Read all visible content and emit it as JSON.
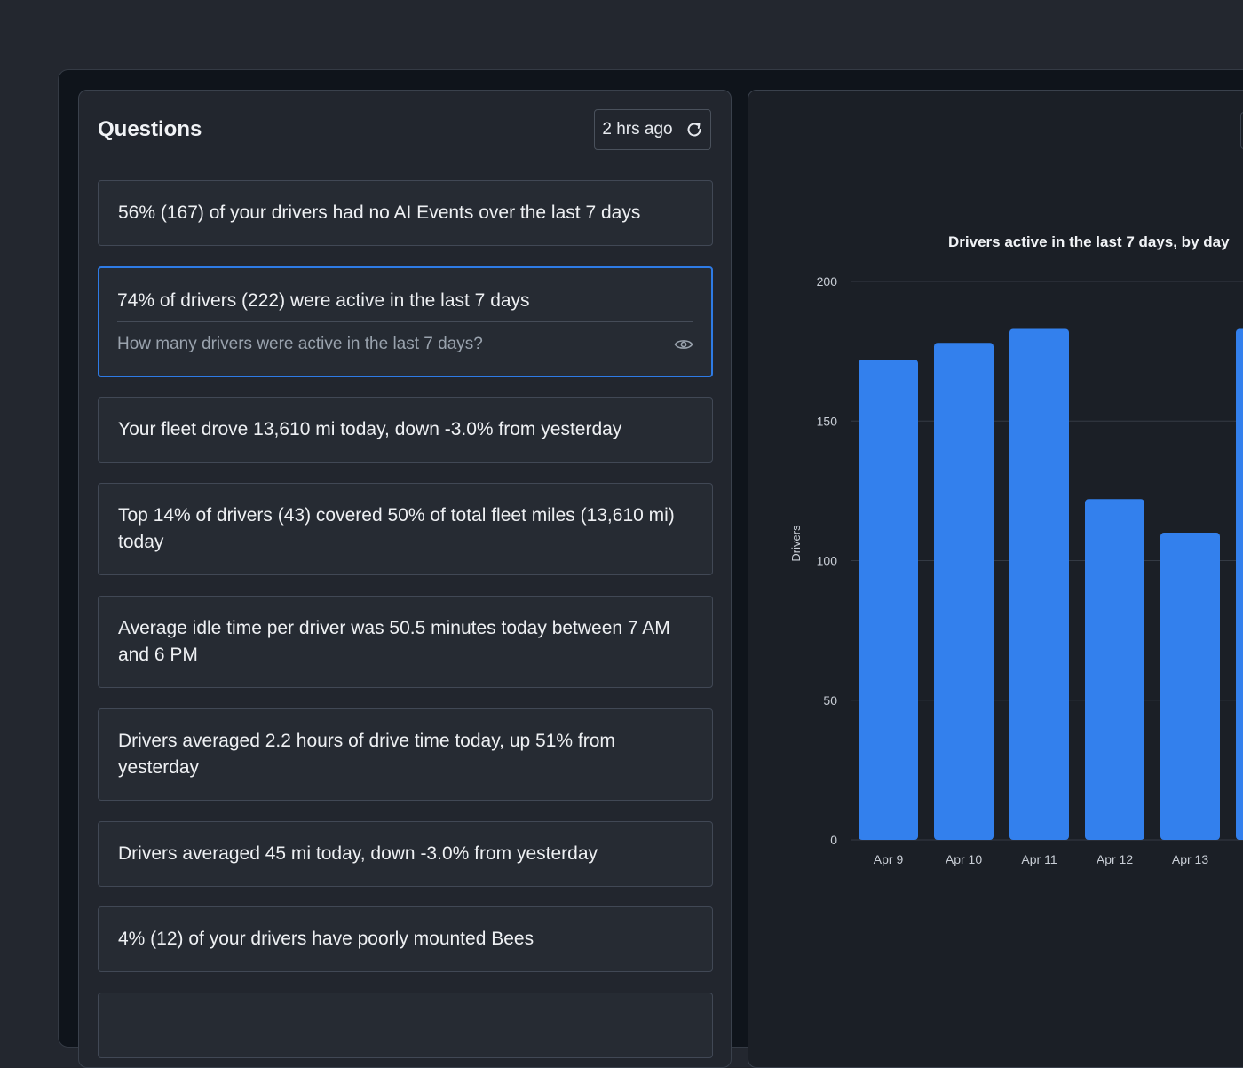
{
  "questions_panel": {
    "title": "Questions",
    "refresh_label": "2 hrs ago",
    "cards": [
      {
        "text": "56% (167) of your drivers had no AI Events over the last 7 days"
      },
      {
        "text": "74% of drivers (222) were active in the last 7 days",
        "question": "How many drivers were active in the last 7 days?"
      },
      {
        "text": "Your fleet drove 13,610 mi today, down -3.0% from yesterday"
      },
      {
        "text": "Top 14% of drivers (43) covered 50% of total fleet miles (13,610 mi) today"
      },
      {
        "text": "Average idle time per driver was 50.5 minutes today between 7 AM and 6 PM"
      },
      {
        "text": "Drivers averaged 2.2 hours of drive time today, up 51% from yesterday"
      },
      {
        "text": "Drivers averaged 45 mi today, down -3.0% from yesterday"
      },
      {
        "text": "4% (12) of your drivers have poorly mounted Bees"
      }
    ]
  },
  "colors": {
    "accent": "#2e7be6",
    "bar": "#3380ed",
    "panel_bg": "#22262e",
    "chart_bg": "#1b1f26"
  },
  "icons": {
    "refresh": "refresh-icon",
    "view": "eye-icon"
  },
  "chart_data": {
    "type": "bar",
    "title": "Drivers active in the last 7 days, by day",
    "ylabel": "Drivers",
    "xlabel": "",
    "categories": [
      "Apr 9",
      "Apr 10",
      "Apr 11",
      "Apr 12",
      "Apr 13",
      ""
    ],
    "values": [
      172,
      178,
      183,
      122,
      110,
      183
    ],
    "ylim": [
      0,
      200
    ],
    "yticks": [
      0,
      50,
      100,
      150,
      200
    ],
    "grid": true
  }
}
